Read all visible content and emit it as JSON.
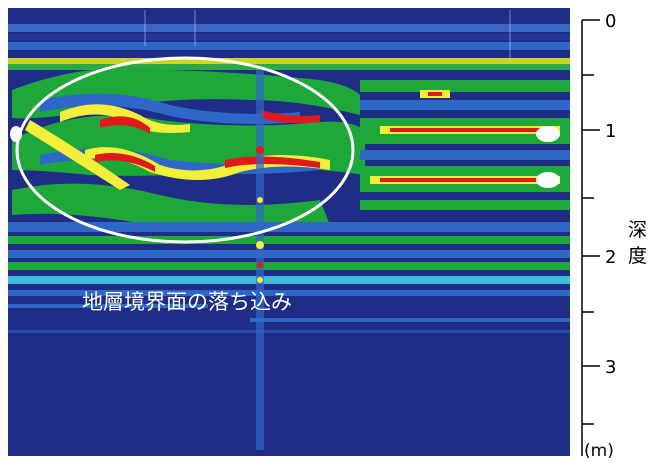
{
  "annotation": {
    "label": "地層境界面の落ち込み"
  },
  "depth_axis": {
    "title": "深度",
    "unit": "(m)",
    "ticks": [
      "0",
      "1",
      "2",
      "3"
    ]
  },
  "colors": {
    "background_deep": "#1f2d86",
    "band_blue": "#2f67c8",
    "band_cyan": "#3fbfdc",
    "band_green": "#1fa83a",
    "band_yellow": "#f2ee3a",
    "band_red": "#e01a1a",
    "highlight": "#ffffff"
  }
}
